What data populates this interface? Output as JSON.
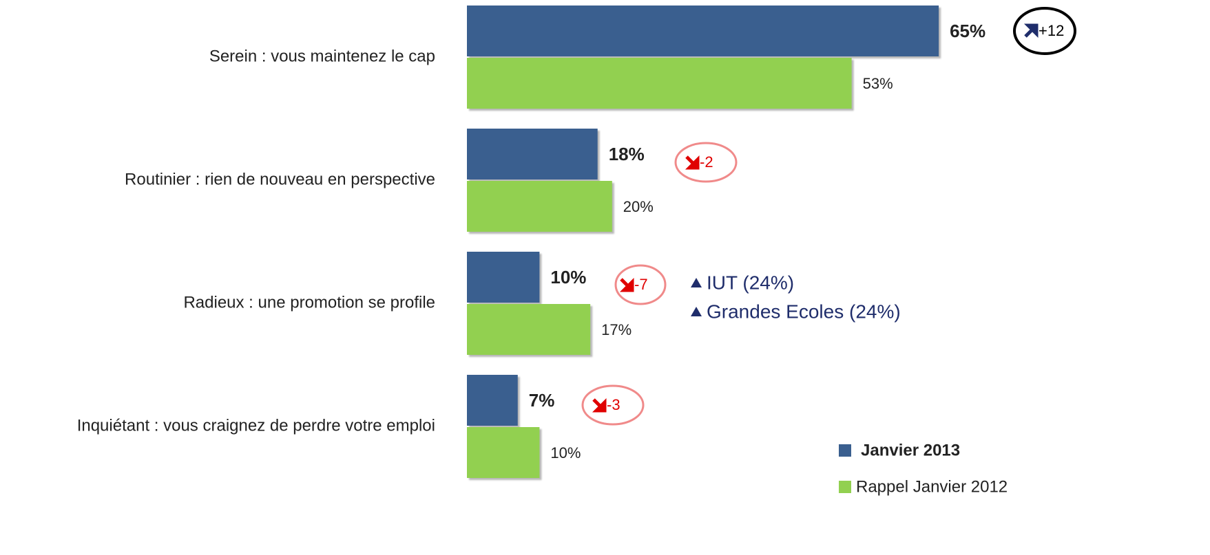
{
  "chart_data": {
    "type": "bar",
    "orientation": "horizontal",
    "categories": [
      "Serein : vous maintenez le cap",
      "Routinier : rien de nouveau en perspective",
      "Radieux : une promotion se profile",
      "Inquiétant : vous craignez de perdre votre emploi"
    ],
    "series": [
      {
        "name": "Janvier 2013",
        "color": "#3a5f8f",
        "values": [
          65,
          18,
          10,
          7
        ],
        "value_labels": [
          "65%",
          "18%",
          "10%",
          "7%"
        ]
      },
      {
        "name": "Rappel Janvier 2012",
        "color": "#92d050",
        "values": [
          53,
          20,
          17,
          10
        ],
        "value_labels": [
          "53%",
          "20%",
          "17%",
          "10%"
        ]
      }
    ],
    "annotations": [
      "+12",
      "-2",
      "-7",
      "-3"
    ],
    "notes": [
      "IUT (24%)",
      "Grandes Ecoles (24%)"
    ]
  }
}
